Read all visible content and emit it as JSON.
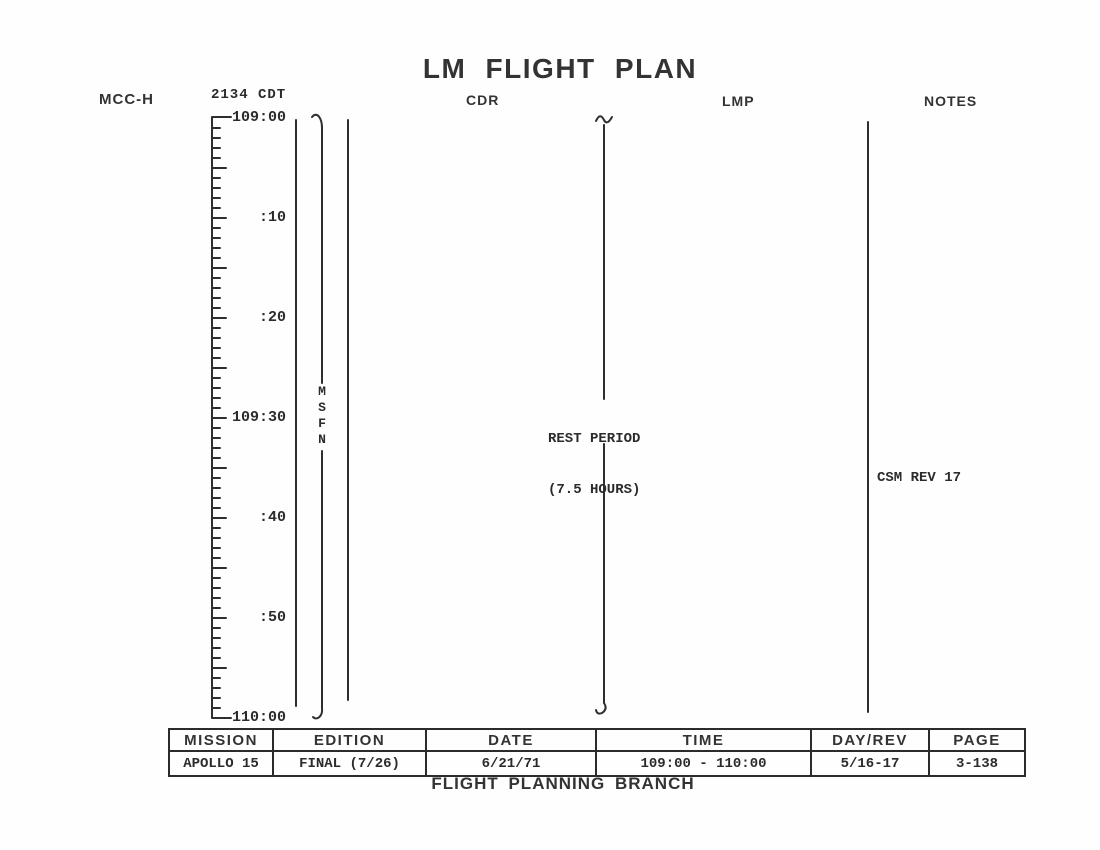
{
  "document": {
    "title": "LM FLIGHT PLAN",
    "footer": "FLIGHT PLANNING BRANCH"
  },
  "columns": {
    "mcch_label": "MCC-H",
    "cdt_label": "2134 CDT",
    "cdr_label": "CDR",
    "lmp_label": "LMP",
    "notes_label": "NOTES"
  },
  "timeline": {
    "start_label": "109:00",
    "end_label": "110:00",
    "duration_minutes": 60,
    "minor_tick_minutes": 1,
    "major_tick_minutes": 5,
    "tick_labels": [
      {
        "text": "109:00",
        "minute": 0
      },
      {
        "text": ":10",
        "minute": 10
      },
      {
        "text": ":20",
        "minute": 20
      },
      {
        "text": "109:30",
        "minute": 30
      },
      {
        "text": ":40",
        "minute": 40
      },
      {
        "text": ":50",
        "minute": 50
      },
      {
        "text": "110:00",
        "minute": 60
      }
    ]
  },
  "events": {
    "msfn": {
      "letters": [
        "M",
        "S",
        "F",
        "N"
      ],
      "label": "MSFN"
    },
    "rest_period": {
      "line1": "REST PERIOD",
      "line2": "(7.5 HOURS)"
    },
    "csm_rev": {
      "text": "CSM REV 17"
    }
  },
  "footer_table": {
    "headers": [
      "MISSION",
      "EDITION",
      "DATE",
      "TIME",
      "DAY/REV",
      "PAGE"
    ],
    "values": [
      "APOLLO 15",
      "FINAL (7/26)",
      "6/21/71",
      "109:00 - 110:00",
      "5/16-17",
      "3-138"
    ]
  },
  "colors": {
    "ink": "#2b2b2b",
    "paper": "#fefefe"
  }
}
